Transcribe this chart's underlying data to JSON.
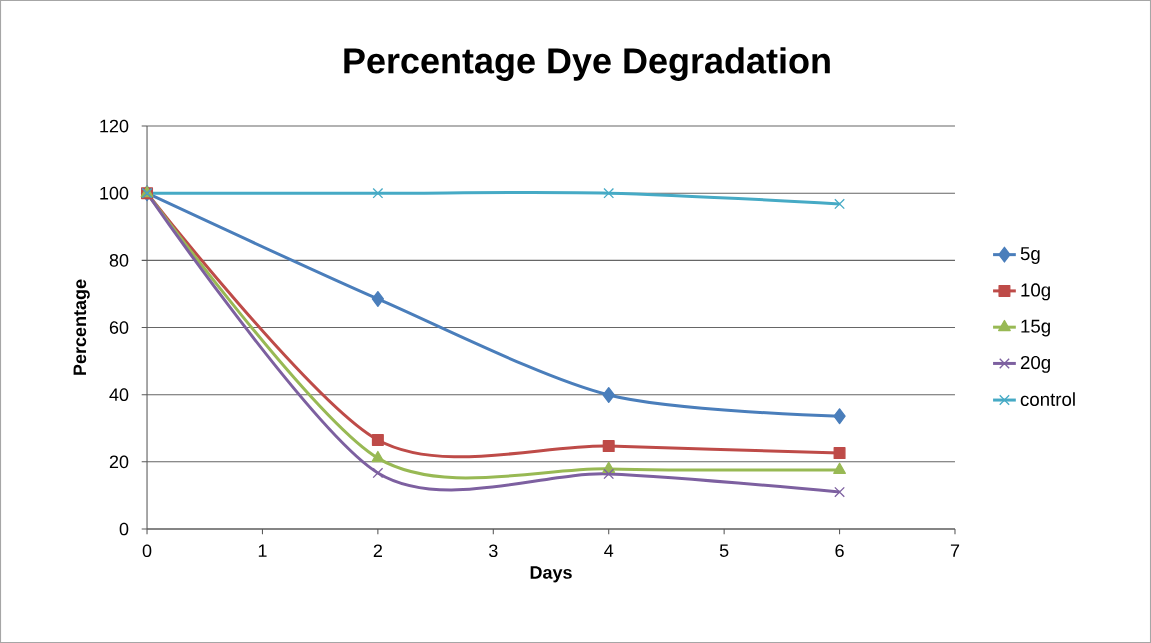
{
  "chart_data": {
    "type": "line",
    "title": "Percentage Dye Degradation",
    "xlabel": "Days",
    "ylabel": "Percentage",
    "x": [
      0,
      2,
      4,
      6
    ],
    "xlim": [
      0,
      7
    ],
    "xticks": [
      0,
      1,
      2,
      3,
      4,
      5,
      6,
      7
    ],
    "ylim": [
      0,
      120
    ],
    "yticks": [
      0,
      20,
      40,
      60,
      80,
      100,
      120
    ],
    "grid": "y",
    "legend": "right",
    "series": [
      {
        "name": "5g",
        "color": "#4a7ebb",
        "marker": "diamond",
        "values": [
          100,
          68.5,
          39.9,
          33.6
        ]
      },
      {
        "name": "10g",
        "color": "#be4b48",
        "marker": "square",
        "values": [
          100,
          26.5,
          24.7,
          22.6
        ]
      },
      {
        "name": "15g",
        "color": "#98b954",
        "marker": "triangle",
        "values": [
          100,
          21.1,
          17.9,
          17.6
        ]
      },
      {
        "name": "20g",
        "color": "#7d60a0",
        "marker": "cross",
        "values": [
          100,
          16.7,
          16.4,
          11.0
        ]
      },
      {
        "name": "control",
        "color": "#46aac5",
        "marker": "cross",
        "values": [
          100,
          100,
          100,
          96.8
        ]
      }
    ]
  }
}
